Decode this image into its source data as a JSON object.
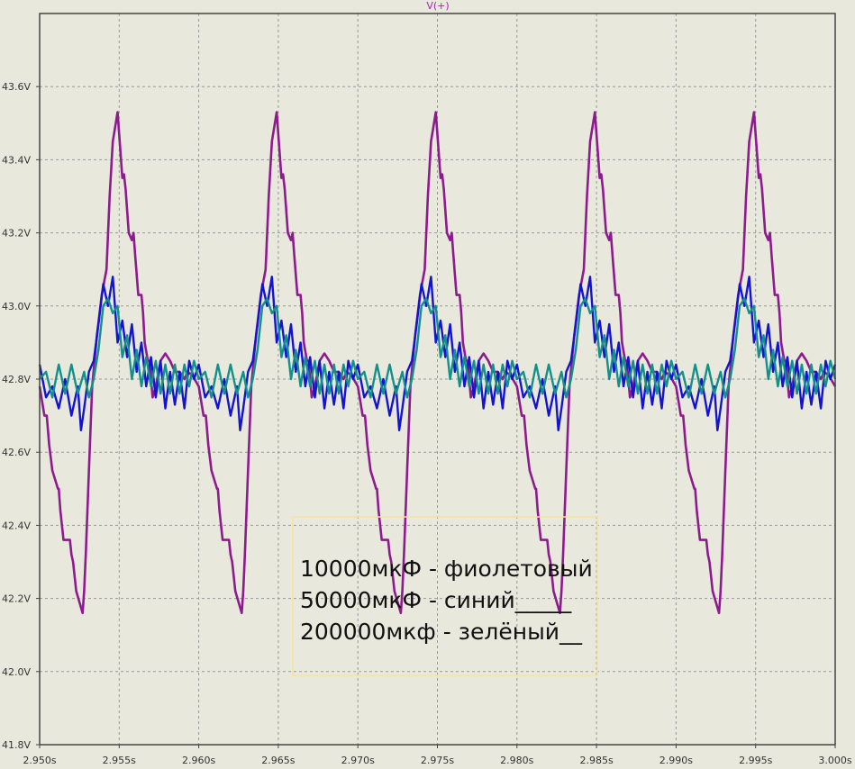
{
  "window": {
    "trace_title": "V(+)"
  },
  "colors": {
    "background": "#e8e8dc",
    "grid": "#999999",
    "frame": "#444444",
    "note_border": "#f2e3a8"
  },
  "note": {
    "lines": [
      "10000мкФ - фиолетовый",
      "50000мкФ - синий_____",
      "200000мкф - зелёный__"
    ]
  },
  "chart_data": {
    "type": "line",
    "title": "V(+)",
    "xlabel": "",
    "ylabel": "",
    "xlim": [
      2.95,
      3.0
    ],
    "ylim": [
      41.8,
      43.8
    ],
    "grid": true,
    "x_ticks": [
      2.95,
      2.955,
      2.96,
      2.965,
      2.97,
      2.975,
      2.98,
      2.985,
      2.99,
      2.995,
      3.0
    ],
    "x_tick_labels": [
      "2.950s",
      "2.955s",
      "2.960s",
      "2.965s",
      "2.970s",
      "2.975s",
      "2.980s",
      "2.985s",
      "2.990s",
      "2.995s",
      "3.000s"
    ],
    "y_ticks": [
      41.8,
      42.0,
      42.2,
      42.4,
      42.6,
      42.8,
      43.0,
      43.2,
      43.4,
      43.6
    ],
    "y_tick_labels": [
      "41.8V",
      "42.0V",
      "42.2V",
      "42.4V",
      "42.6V",
      "42.8V",
      "43.0V",
      "43.2V",
      "43.4V",
      "43.6V"
    ],
    "period_s": 0.01,
    "series": [
      {
        "color": "#8e1b8e",
        "stroke": 2.6,
        "period_x": [
          0,
          0.0003,
          0.00045,
          0.0006,
          0.0008,
          0.00115,
          0.0012,
          0.0013,
          0.0015,
          0.0019,
          0.002,
          0.0021,
          0.0023,
          0.0027,
          0.0028,
          0.0029,
          0.0031,
          0.0033,
          0.0036,
          0.0039,
          0.0042,
          0.0044,
          0.0046,
          0.0049,
          0.0052,
          0.0053,
          0.0054,
          0.0056,
          0.0058,
          0.0059,
          0.006,
          0.0062,
          0.0064,
          0.0065,
          0.0066,
          0.0068,
          0.0069,
          0.007,
          0.0071,
          0.0073,
          0.0076,
          0.0079,
          0.0082,
          0.0085,
          0.0088,
          0.0091,
          0.0093,
          0.0096,
          0.01
        ],
        "period_y": [
          42.78,
          42.7,
          42.7,
          42.62,
          42.55,
          42.5,
          42.5,
          42.44,
          42.36,
          42.36,
          42.32,
          42.3,
          42.22,
          42.16,
          42.22,
          42.32,
          42.55,
          42.78,
          42.92,
          43.03,
          43.1,
          43.3,
          43.45,
          43.53,
          43.35,
          43.36,
          43.32,
          43.2,
          43.18,
          43.2,
          43.14,
          43.03,
          43.03,
          42.98,
          42.9,
          42.85,
          42.85,
          42.8,
          42.75,
          42.78,
          42.85,
          42.87,
          42.85,
          42.82,
          42.82,
          42.8,
          42.82,
          42.81,
          42.78
        ]
      },
      {
        "color": "#1414d0",
        "stroke": 2.4,
        "period_x": [
          0,
          0.0004,
          0.0008,
          0.0012,
          0.0016,
          0.002,
          0.0024,
          0.0026,
          0.0028,
          0.0031,
          0.0034,
          0.0037,
          0.004,
          0.0043,
          0.0046,
          0.0049,
          0.0052,
          0.0055,
          0.0058,
          0.0061,
          0.0064,
          0.0067,
          0.007,
          0.0073,
          0.0076,
          0.0079,
          0.0082,
          0.0085,
          0.0088,
          0.0091,
          0.0094,
          0.0097,
          0.01
        ],
        "period_y": [
          42.84,
          42.75,
          42.78,
          42.72,
          42.8,
          42.7,
          42.78,
          42.66,
          42.72,
          42.82,
          42.85,
          42.95,
          43.06,
          43.0,
          43.08,
          42.9,
          42.96,
          42.86,
          42.95,
          42.82,
          42.9,
          42.78,
          42.86,
          42.75,
          42.85,
          42.72,
          42.82,
          42.73,
          42.82,
          42.72,
          42.85,
          42.8,
          42.84
        ]
      },
      {
        "color": "#14908a",
        "stroke": 2.4,
        "period_x": [
          0,
          0.0004,
          0.0008,
          0.0012,
          0.0016,
          0.002,
          0.0024,
          0.0028,
          0.0031,
          0.0034,
          0.0037,
          0.004,
          0.0043,
          0.0046,
          0.0049,
          0.0052,
          0.0055,
          0.0058,
          0.0061,
          0.0064,
          0.0067,
          0.007,
          0.0073,
          0.0076,
          0.0079,
          0.0082,
          0.0085,
          0.0088,
          0.0091,
          0.0094,
          0.0097,
          0.01
        ],
        "period_y": [
          42.8,
          42.82,
          42.75,
          42.84,
          42.76,
          42.84,
          42.76,
          42.82,
          42.75,
          42.8,
          42.88,
          43.0,
          43.02,
          42.98,
          43.0,
          42.86,
          42.92,
          42.8,
          42.88,
          42.78,
          42.86,
          42.78,
          42.85,
          42.76,
          42.84,
          42.76,
          42.84,
          42.76,
          42.84,
          42.78,
          42.85,
          42.8
        ]
      }
    ]
  }
}
